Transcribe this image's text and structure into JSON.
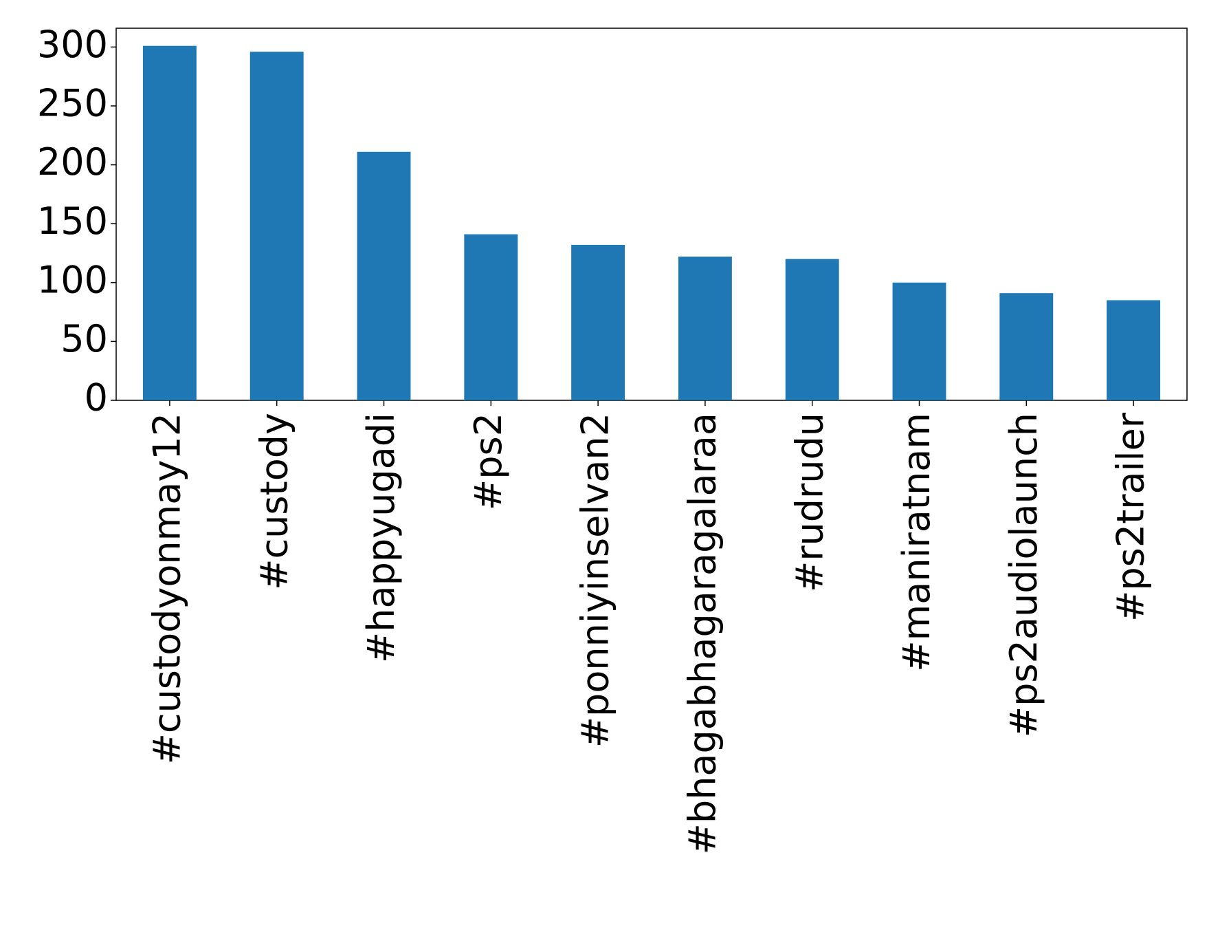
{
  "chart_data": {
    "type": "bar",
    "categories": [
      "#custodyonmay12",
      "#custody",
      "#happyugadi",
      "#ps2",
      "#ponniyinselvan2",
      "#bhagabhagaragalaraa",
      "#rudrudu",
      "#maniratnam",
      "#ps2audiolaunch",
      "#ps2trailer"
    ],
    "values": [
      301,
      296,
      211,
      141,
      132,
      122,
      120,
      100,
      91,
      85
    ],
    "color": "#1f77b4",
    "ylim": [
      0,
      316
    ],
    "yticks": [
      0,
      50,
      100,
      150,
      200,
      250,
      300
    ],
    "grid": false
  }
}
